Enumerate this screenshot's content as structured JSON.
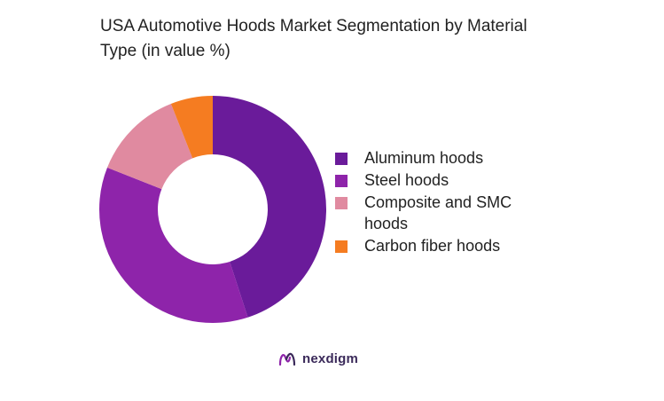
{
  "chart_data": {
    "type": "pie",
    "title": "USA Automotive Hoods Market Segmentation by Material Type (in value %)",
    "donut": true,
    "categories": [
      "Aluminum hoods",
      "Steel hoods",
      "Composite and SMC hoods",
      "Carbon fiber hoods"
    ],
    "values": [
      45,
      36,
      13,
      6
    ],
    "colors": [
      "#6a1b9a",
      "#8e24aa",
      "#e08aa0",
      "#f57c21"
    ],
    "legend_position": "right"
  },
  "brand": {
    "name": "nexdigm",
    "icon": "nexdigm-logo-icon",
    "color": "#3b2a5a",
    "accent": "#8e24aa"
  }
}
